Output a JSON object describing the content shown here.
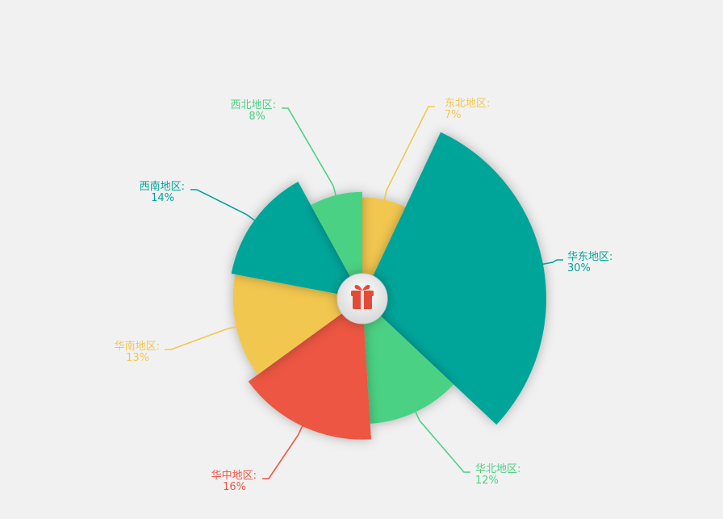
{
  "chart_data": {
    "type": "pie",
    "variant": "rose",
    "title": "",
    "start_angle_deg": 0,
    "slices": [
      {
        "name": "东北地区:",
        "percent_label": "7%",
        "value": 7,
        "color": "#f2c74f"
      },
      {
        "name": "华东地区:",
        "percent_label": "30%",
        "value": 30,
        "color": "#00a59a"
      },
      {
        "name": "华北地区:",
        "percent_label": "12%",
        "value": 12,
        "color": "#4cd183"
      },
      {
        "name": "华中地区:",
        "percent_label": "16%",
        "value": 16,
        "color": "#ec5642"
      },
      {
        "name": "华南地区:",
        "percent_label": "13%",
        "value": 13,
        "color": "#f2c74f"
      },
      {
        "name": "西南地区:",
        "percent_label": "14%",
        "value": 14,
        "color": "#00a59a"
      },
      {
        "name": "西北地区:",
        "percent_label": "8%",
        "value": 8,
        "color": "#4cd183"
      }
    ],
    "center_icon": "gift-icon",
    "center_icon_color": "#e24b3a"
  }
}
